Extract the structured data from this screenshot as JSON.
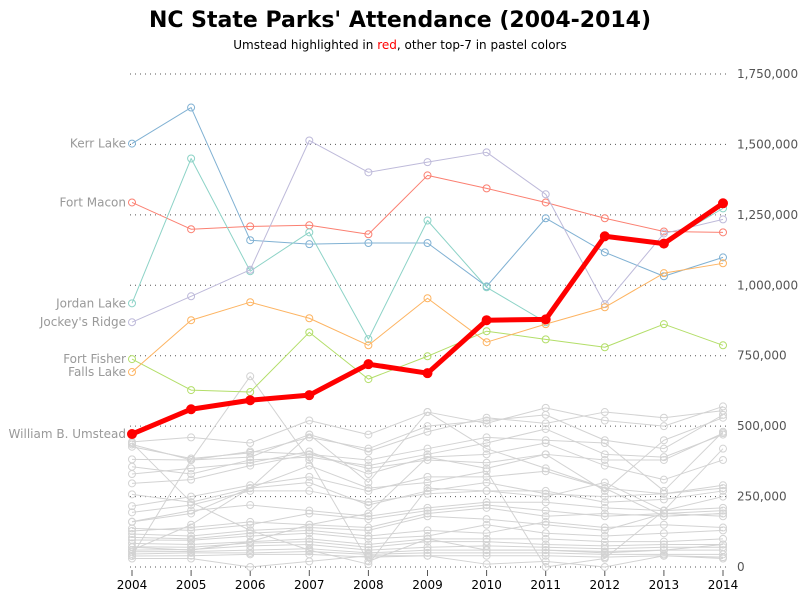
{
  "chart_data": {
    "type": "line",
    "title": "NC State Parks' Attendance (2004-2014)",
    "subtitle_parts": [
      "Umstead highlighted in ",
      "red",
      ", other top-7 in pastel colors"
    ],
    "xlabel": "",
    "ylabel": "",
    "x": [
      2004,
      2005,
      2006,
      2007,
      2008,
      2009,
      2010,
      2011,
      2012,
      2013,
      2014
    ],
    "ylim": [
      0,
      1750000
    ],
    "yticks": [
      0,
      250000,
      500000,
      750000,
      1000000,
      1250000,
      1500000,
      1750000
    ],
    "ytick_labels": [
      "0",
      "250,000",
      "500,000",
      "750,000",
      "1,000,000",
      "1,250,000",
      "1,500,000",
      "1,750,000"
    ],
    "xtick_labels": [
      "2004",
      "2005",
      "2006",
      "2007",
      "2008",
      "2009",
      "2010",
      "2011",
      "2012",
      "2013",
      "2014"
    ],
    "grid": "horizontal-dotted",
    "highlight": {
      "name": "William B. Umstead",
      "color": "#ff0000",
      "values": [
        472000,
        560000,
        592000,
        610000,
        720000,
        688000,
        876000,
        879000,
        1174000,
        1148000,
        1291000
      ]
    },
    "series": [
      {
        "name": "Kerr Lake",
        "color": "#80b1d3",
        "values": [
          1503000,
          1631000,
          1160000,
          1146000,
          1150000,
          1150000,
          996000,
          1238000,
          1117000,
          1032000,
          1099000
        ]
      },
      {
        "name": "Fort Macon",
        "color": "#fb8072",
        "values": [
          1294000,
          1199000,
          1209000,
          1213000,
          1181000,
          1390000,
          1344000,
          1294000,
          1238000,
          1191000,
          1188000
        ]
      },
      {
        "name": "Jordan Lake",
        "color": "#8dd3c7",
        "values": [
          936000,
          1450000,
          1050000,
          1188000,
          809000,
          1230000,
          993000,
          869000,
          1170000,
          1150000,
          1273000
        ]
      },
      {
        "name": "Jockey's Ridge",
        "color": "#bebada",
        "values": [
          869000,
          961000,
          1055000,
          1514000,
          1401000,
          1437000,
          1472000,
          1323000,
          933000,
          1184000,
          1234000
        ]
      },
      {
        "name": "Fort Fisher",
        "color": "#b3de69",
        "values": [
          738000,
          628000,
          621000,
          833000,
          667000,
          748000,
          837000,
          808000,
          780000,
          862000,
          787000
        ]
      },
      {
        "name": "Falls Lake",
        "color": "#fdb462",
        "values": [
          692000,
          876000,
          940000,
          883000,
          787000,
          954000,
          798000,
          862000,
          922000,
          1043000,
          1078000
        ]
      }
    ],
    "other_color": "#d3d3d3",
    "other_series": [
      [
        444000,
        460000,
        440000,
        520000,
        470000,
        550000,
        510000,
        565000,
        520000,
        500000,
        570000
      ],
      [
        435000,
        380000,
        390000,
        470000,
        410000,
        480000,
        530000,
        510000,
        550000,
        530000,
        555000
      ],
      [
        427000,
        385000,
        405000,
        460000,
        420000,
        500000,
        520000,
        540000,
        450000,
        420000,
        540000
      ],
      [
        382000,
        380000,
        410000,
        400000,
        380000,
        420000,
        460000,
        450000,
        440000,
        270000,
        480000
      ],
      [
        356000,
        330000,
        380000,
        390000,
        360000,
        400000,
        440000,
        490000,
        400000,
        390000,
        470000
      ],
      [
        330000,
        350000,
        370000,
        410000,
        330000,
        390000,
        400000,
        440000,
        360000,
        310000,
        380000
      ],
      [
        297000,
        310000,
        360000,
        400000,
        350000,
        380000,
        370000,
        400000,
        380000,
        380000,
        475000
      ],
      [
        258000,
        230000,
        280000,
        300000,
        220000,
        270000,
        300000,
        260000,
        250000,
        260000,
        290000
      ],
      [
        216000,
        250000,
        290000,
        320000,
        270000,
        320000,
        320000,
        340000,
        280000,
        260000,
        280000
      ],
      [
        194000,
        220000,
        270000,
        270000,
        230000,
        260000,
        270000,
        270000,
        230000,
        240000,
        270000
      ],
      [
        161000,
        200000,
        220000,
        200000,
        180000,
        210000,
        230000,
        230000,
        210000,
        200000,
        250000
      ],
      [
        137000,
        130000,
        150000,
        190000,
        170000,
        200000,
        220000,
        200000,
        180000,
        190000,
        200000
      ],
      [
        128000,
        140000,
        160000,
        150000,
        140000,
        190000,
        210000,
        180000,
        190000,
        180000,
        190000
      ],
      [
        117000,
        110000,
        130000,
        140000,
        130000,
        180000,
        170000,
        150000,
        130000,
        190000,
        180000
      ],
      [
        105000,
        100000,
        120000,
        130000,
        110000,
        130000,
        120000,
        160000,
        140000,
        150000,
        140000
      ],
      [
        96000,
        95000,
        110000,
        120000,
        100000,
        110000,
        150000,
        120000,
        110000,
        120000,
        130000
      ],
      [
        84000,
        80000,
        90000,
        100000,
        80000,
        100000,
        100000,
        100000,
        90000,
        90000,
        100000
      ],
      [
        72000,
        70000,
        85000,
        90000,
        70000,
        90000,
        90000,
        80000,
        75000,
        80000,
        80000
      ],
      [
        60000,
        62000,
        75000,
        80000,
        60000,
        70000,
        75000,
        70000,
        65000,
        70000,
        70000
      ],
      [
        54000,
        55000,
        60000,
        65000,
        50000,
        60000,
        60000,
        60000,
        55000,
        60000,
        60000
      ],
      [
        46000,
        50000,
        50000,
        55000,
        45000,
        50000,
        50000,
        50000,
        45000,
        45000,
        45000
      ],
      [
        39000,
        40000,
        45000,
        45000,
        35000,
        40000,
        40000,
        40000,
        35000,
        40000,
        35000
      ],
      [
        40000,
        380000,
        677000,
        380000,
        20000,
        100000,
        60000,
        60000,
        50000,
        60000,
        80000
      ],
      [
        60000,
        150000,
        280000,
        360000,
        280000,
        300000,
        340000,
        0,
        30000,
        200000,
        420000
      ],
      [
        440000,
        230000,
        130000,
        60000,
        10000,
        280000,
        270000,
        250000,
        300000,
        200000,
        210000
      ],
      [
        30000,
        30000,
        0,
        20000,
        40000,
        40000,
        10000,
        20000,
        0,
        40000,
        30000
      ],
      [
        160000,
        190000,
        280000,
        470000,
        300000,
        550000,
        420000,
        350000,
        280000,
        180000,
        190000
      ],
      [
        70000,
        60000,
        90000,
        150000,
        190000,
        390000,
        350000,
        400000,
        270000,
        450000,
        530000
      ]
    ]
  }
}
